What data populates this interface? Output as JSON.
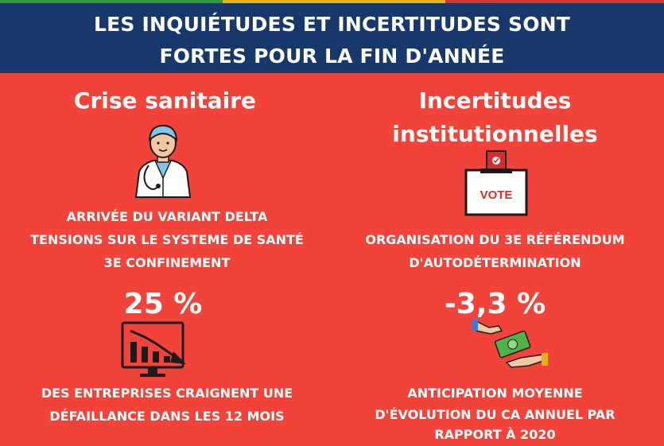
{
  "colors": {
    "background": "#f2433a",
    "header": "#17386b",
    "text": "#ffffff",
    "icon_line": "#1b1b1b",
    "vote_red": "#d92b2b",
    "money_green": "#4fb34a",
    "skin": "#f2c8a2"
  },
  "header": {
    "line1": "LES INQUIÉTUDES ET INCERTITUDES SONT",
    "line2": "FORTES POUR LA FIN D'ANNÉE"
  },
  "left": {
    "title": "Crise sanitaire",
    "icon": "doctor-icon",
    "lines": [
      "ARRIVÉE DU VARIANT DELTA",
      "TENSIONS SUR LE SYSTEME DE SANTÉ",
      "3E CONFINEMENT"
    ],
    "stat": "25 %",
    "stat_icon": "declining-chart-monitor-icon",
    "stat_lines": [
      "DES ENTREPRISES CRAIGNENT UNE",
      "DÉFAILLANCE  DANS LES 12 MOIS"
    ]
  },
  "right": {
    "title_line1": "Incertitudes",
    "title_line2": "institutionnelles",
    "icon": "ballot-box-icon",
    "vote_label": "VOTE",
    "lines": [
      "ORGANISATION DU 3E RÉFÉRENDUM",
      "D'AUTODÉTERMINATION"
    ],
    "stat": "-3,3 %",
    "stat_icon": "money-exchange-icon",
    "stat_lines": [
      "ANTICIPATION MOYENNE",
      "D'ÉVOLUTION DU CA ANNUEL PAR",
      "RAPPORT À 2020"
    ]
  }
}
